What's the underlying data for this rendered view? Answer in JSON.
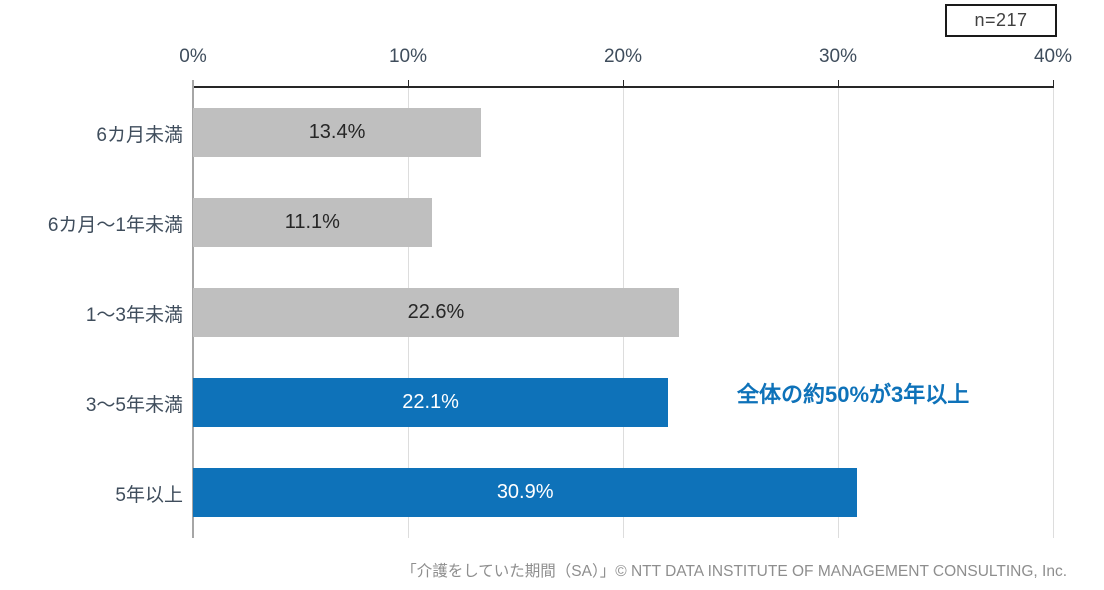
{
  "n_badge": {
    "label": "n=217"
  },
  "chart_data": {
    "type": "bar",
    "orientation": "horizontal",
    "title": "",
    "xlabel": "",
    "ylabel": "",
    "categories": [
      "6カ月未満",
      "6カ月～1年未満",
      "1～3年未満",
      "3～5年未満",
      "5年以上"
    ],
    "values": [
      13.4,
      11.1,
      22.6,
      22.1,
      30.9
    ],
    "value_labels": [
      "13.4%",
      "11.1%",
      "22.6%",
      "22.1%",
      "30.9%"
    ],
    "xlim": [
      0,
      40
    ],
    "tick_labels": [
      "0%",
      "10%",
      "20%",
      "30%",
      "40%"
    ],
    "grid": true,
    "legend": false,
    "bar_colors": [
      "#bfbfbf",
      "#bfbfbf",
      "#bfbfbf",
      "#0e72b9",
      "#0e72b9"
    ],
    "value_text_colors": [
      "#262626",
      "#262626",
      "#262626",
      "#ffffff",
      "#ffffff"
    ],
    "axis_label_color": "#3f4d5c",
    "annotation": {
      "text": "全体の約50%が3年以上",
      "color": "#0e72b9"
    }
  },
  "footer": {
    "caption": "「介護をしていた期間（SA）」© NTT DATA INSTITUTE OF MANAGEMENT CONSULTING, Inc."
  }
}
